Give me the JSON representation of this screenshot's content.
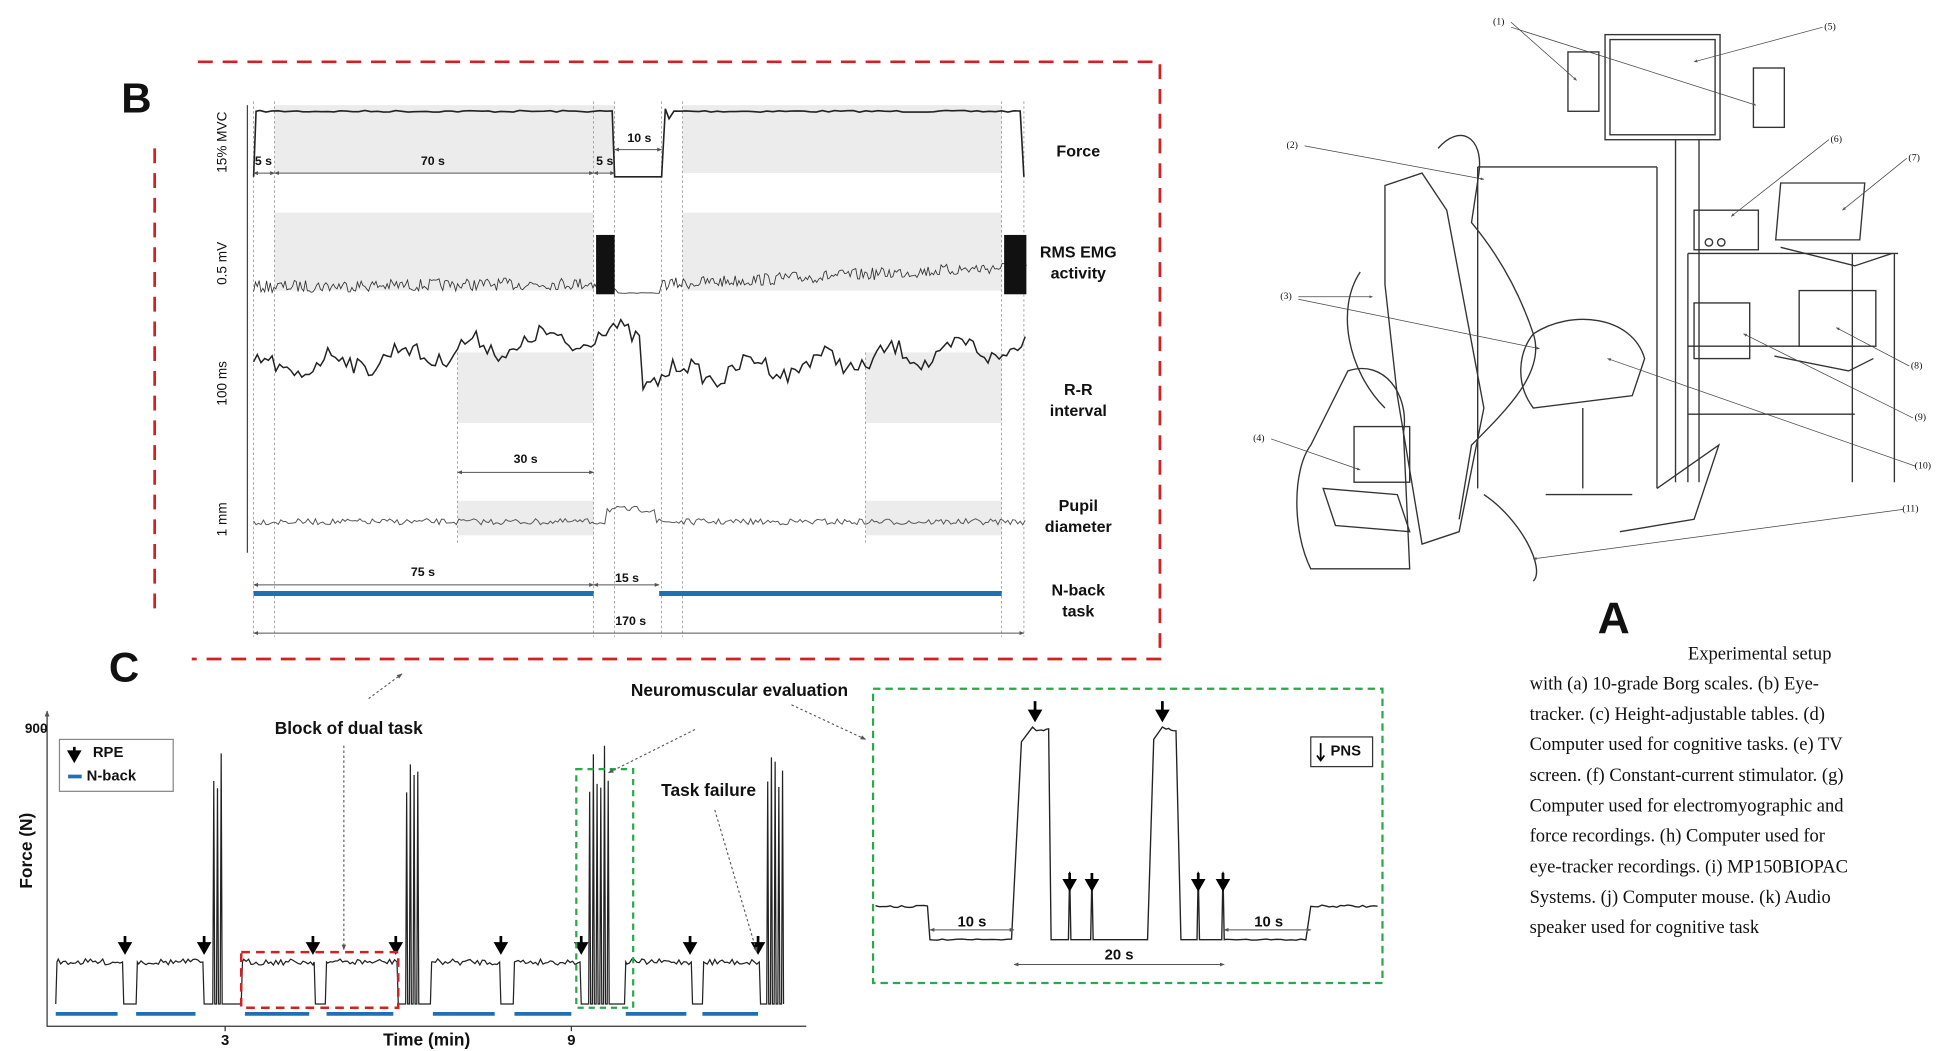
{
  "panel_b": {
    "label": "B",
    "units": [
      "15% MVC",
      "0.5 mV",
      "100 ms",
      "1 mm"
    ],
    "signals": [
      [
        "Force"
      ],
      [
        "RMS EMG",
        "activity"
      ],
      [
        "R-R",
        "interval"
      ],
      [
        "Pupil",
        "diameter"
      ],
      [
        "N-back",
        "task"
      ]
    ],
    "durations": [
      "5 s",
      "70 s",
      "5 s",
      "10 s",
      "30 s",
      "75 s",
      "15 s",
      "170 s"
    ]
  },
  "panel_c": {
    "label": "C",
    "y_tick": "900",
    "y_axis": "Force (N)",
    "x_axis": "Time (min)",
    "x_ticks": [
      "3",
      "9"
    ],
    "legend": [
      "RPE",
      "N-back"
    ],
    "annotations": [
      "Block of dual task",
      "Neuromuscular evaluation",
      "Task failure"
    ],
    "inset": {
      "legend": "PNS",
      "durations": [
        "10 s",
        "20 s",
        "10 s"
      ]
    }
  },
  "panel_a": {
    "label": "A",
    "callouts": [
      "(1)",
      "(2)",
      "(3)",
      "(4)",
      "(5)",
      "(6)",
      "(7)",
      "(8)",
      "(9)",
      "(10)",
      "(11)"
    ],
    "caption": [
      "Experimental setup",
      "with (a) 10-grade Borg scales. (b) Eye-",
      "tracker. (c) Height-adjustable tables. (d)",
      "Computer used for cognitive tasks. (e) TV",
      "screen. (f) Constant-current stimulator. (g)",
      "Computer used for electromyographic and",
      "force recordings. (h) Computer used for",
      "eye-tracker recordings. (i) MP150BIOPAC",
      "Systems. (j) Computer mouse. (k) Audio",
      "speaker used for cognitive task"
    ]
  }
}
